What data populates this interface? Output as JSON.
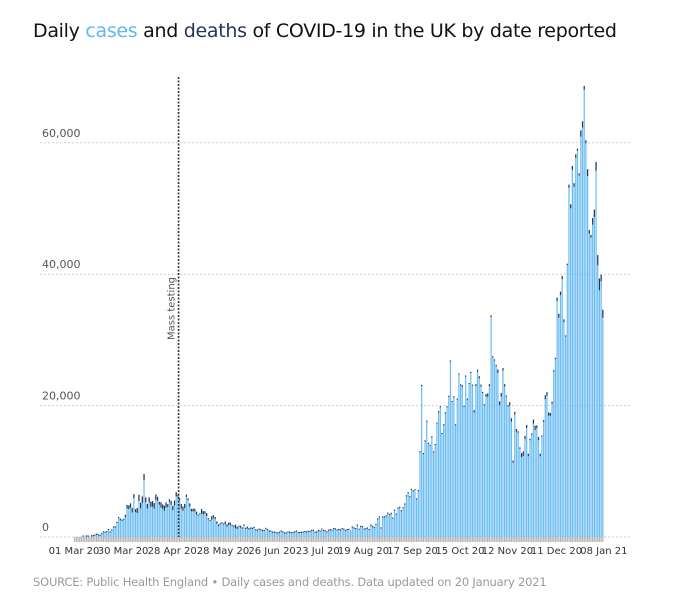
{
  "title": {
    "prefix": "Daily ",
    "cases_word": "cases",
    "middle": " and ",
    "deaths_word": "deaths",
    "suffix": " of COVID-19 in the UK by date reported"
  },
  "source": "SOURCE: Public Health England • Daily cases and deaths. Data updated on 20 January 2021",
  "colors": {
    "cases": "#6cbdf3",
    "deaths": "#1f3558",
    "grid": "#cfcfcf",
    "baseline_ticks": "#b5b5b5"
  },
  "chart_data": {
    "type": "bar",
    "stacked": true,
    "title": "Daily cases and deaths of COVID-19 in the UK by date reported",
    "xlabel": "",
    "ylabel": "",
    "start_date": "2020-03-01",
    "end_date": "2021-01-20",
    "ylim": [
      0,
      70000
    ],
    "yticks": [
      0,
      20000,
      40000,
      60000
    ],
    "ytick_labels": [
      "0",
      "20,000",
      "40,000",
      "60,000"
    ],
    "grid": true,
    "xtick_labels": [
      {
        "label": "01 Mar 20",
        "day": 0
      },
      {
        "label": "30 Mar 20",
        "day": 29
      },
      {
        "label": "28 Apr 20",
        "day": 58
      },
      {
        "label": "28 May 20",
        "day": 88
      },
      {
        "label": "26 Jun 20",
        "day": 117
      },
      {
        "label": "23 Jul 20",
        "day": 144
      },
      {
        "label": "19 Aug 20",
        "day": 171
      },
      {
        "label": "17 Sep 20",
        "day": 200
      },
      {
        "label": "15 Oct 20",
        "day": 228
      },
      {
        "label": "12 Nov 20",
        "day": 256
      },
      {
        "label": "11 Dec 20",
        "day": 285
      },
      {
        "label": "08 Jan 21",
        "day": 313
      }
    ],
    "annotations": [
      {
        "label": "Mass testing",
        "day": 60,
        "style": "dashed-vertical"
      }
    ],
    "series": [
      {
        "name": "cases",
        "values": [
          12,
          23,
          36,
          40,
          46,
          48,
          43,
          67,
          48,
          52,
          83,
          134,
          208,
          342,
          251,
          152,
          407,
          676,
          643,
          714,
          1035,
          665,
          967,
          1427,
          1452,
          2129,
          2885,
          2546,
          2433,
          2619,
          3009,
          4324,
          4244,
          4450,
          3735,
          5903,
          3802,
          3634,
          5491,
          4344,
          5195,
          8681,
          5288,
          4342,
          5252,
          4603,
          4617,
          4316,
          5599,
          5526,
          4913,
          4463,
          4309,
          3996,
          4451,
          4583,
          5386,
          4913,
          4076,
          4806,
          6201,
          6111,
          5614,
          4339,
          3985,
          4406,
          6111,
          5614,
          4649,
          3896,
          3877,
          3923,
          3403,
          3242,
          3446,
          3560,
          3450,
          3534,
          3173,
          2684,
          2412,
          2615,
          2959,
          2711,
          2013,
          1625,
          1887,
          2095,
          1887,
          1936,
          1570,
          1805,
          1871,
          1650,
          1557,
          1326,
          1205,
          1541,
          1425,
          1266,
          1741,
          1221,
          1295,
          1115,
          1269,
          1218,
          1346,
          1006,
          958,
          1118,
          1010,
          898,
          901,
          1221,
          1042,
          814,
          791,
          655,
          655,
          576,
          516,
          622,
          829,
          687,
          530,
          512,
          650,
          651,
          546,
          602,
          687,
          827,
          581,
          576,
          617,
          650,
          726,
          681,
          769,
          749,
          905,
          938,
          633,
          681,
          880,
          800,
          1108,
          898,
          864,
          686,
          938,
          1046,
          952,
          1187,
          1148,
          950,
          1052,
          1000,
          1182,
          1092,
          892,
          1040,
          1062,
          1033,
          1441,
          1278,
          1184,
          1715,
          1085,
          1522,
          1476,
          1108,
          1184,
          1276,
          1041,
          1715,
          1522,
          1350,
          1813,
          2660,
          2988,
          1295,
          2948,
          2952,
          3105,
          3539,
          3330,
          3497,
          2762,
          3991,
          3395,
          4322,
          4422,
          3899,
          4368,
          4926,
          6178,
          6634,
          6042,
          7143,
          6914,
          7108,
          5693,
          6968,
          12872,
          22961,
          12594,
          14542,
          17540,
          14162,
          13864,
          15166,
          12872,
          13972,
          17234,
          18980,
          19724,
          15650,
          16982,
          18804,
          19724,
          21331,
          26688,
          20530,
          21242,
          16982,
          20890,
          24701,
          23065,
          22885,
          19790,
          24405,
          20890,
          23254,
          24957,
          23012,
          18950,
          22950,
          25177,
          24141,
          22915,
          21915,
          20018,
          21350,
          21363,
          22950,
          33470,
          27301,
          26860,
          26000,
          24962,
          20051,
          21363,
          25329,
          22915,
          21350,
          19875,
          20018,
          17555,
          11299,
          18659,
          16022,
          15871,
          13430,
          12155,
          12330,
          14879,
          16578,
          12282,
          14718,
          15539,
          17272,
          16298,
          16578,
          14718,
          12282,
          15270,
          17555,
          20964,
          21502,
          18447,
          18447,
          20263,
          25161,
          27052,
          35928,
          33364,
          36804,
          39237,
          32725,
          30501,
          41385,
          53135,
          50023,
          55892,
          53285,
          57725,
          58784,
          54990,
          60916,
          62322,
          68053,
          59937,
          54940,
          46169,
          45533,
          47525,
          48682,
          55761,
          41346,
          37535,
          38905,
          33355
        ],
        "color": "#6cbdf3"
      },
      {
        "name": "deaths",
        "values": [
          0,
          0,
          0,
          0,
          0,
          1,
          0,
          1,
          1,
          0,
          3,
          2,
          1,
          10,
          14,
          20,
          16,
          33,
          40,
          33,
          56,
          48,
          54,
          87,
          41,
          115,
          181,
          260,
          209,
          180,
          381,
          563,
          569,
          684,
          708,
          621,
          439,
          786,
          938,
          881,
          980,
          917,
          737,
          717,
          778,
          761,
          861,
          847,
          888,
          596,
          449,
          828,
          638,
          768,
          813,
          413,
          360,
          586,
          674,
          739,
          621,
          315,
          288,
          693,
          649,
          626,
          346,
          268,
          469,
          383,
          428,
          384,
          468,
          170,
          160,
          693,
          494,
          384,
          468,
          170,
          118,
          545,
          363,
          338,
          351,
          282,
          215,
          121,
          134,
          414,
          357,
          377,
          324,
          215,
          113,
          556,
          359,
          176,
          286,
          204,
          77,
          55,
          286,
          245,
          151,
          202,
          173,
          43,
          36,
          135,
          184,
          122,
          89,
          136,
          15,
          36,
          154,
          149,
          140,
          137,
          22,
          6,
          56,
          154,
          127,
          95,
          65,
          24,
          20,
          176,
          89,
          63,
          36,
          22,
          14,
          11,
          85,
          44,
          66,
          52,
          31,
          11,
          8,
          105,
          89,
          18,
          53,
          5,
          3,
          8,
          3,
          57,
          65,
          98,
          74,
          18,
          2,
          5,
          11,
          8,
          26,
          16,
          12,
          0,
          5,
          6,
          11,
          10,
          9,
          10,
          8,
          3,
          5,
          16,
          10,
          2,
          10,
          6,
          2,
          3,
          12,
          6,
          8,
          14,
          12,
          4,
          3,
          20,
          20,
          14,
          18,
          14,
          4,
          3,
          11,
          19,
          23,
          36,
          18,
          17,
          10,
          37,
          37,
          17,
          27,
          34,
          18,
          17,
          71,
          59,
          66,
          76,
          59,
          7,
          19,
          66,
          77,
          81,
          87,
          65,
          13,
          50,
          143,
          137,
          138,
          126,
          81,
          19,
          80,
          241,
          191,
          150,
          189,
          151,
          67,
          102,
          367,
          310,
          280,
          326,
          274,
          136,
          162,
          397,
          492,
          310,
          263,
          214,
          182,
          194,
          532,
          595,
          563,
          376,
          341,
          168,
          210,
          501,
          511,
          341,
          398,
          413,
          205,
          215,
          598,
          696,
          498,
          479,
          396,
          215,
          231,
          603,
          648,
          414,
          504,
          397,
          144,
          232,
          616,
          533,
          516,
          424,
          326,
          215,
          232,
          506,
          612,
          532,
          490,
          410,
          144,
          215,
          506,
          610,
          574,
          570,
          512,
          316,
          357,
          981,
          964,
          613,
          454,
          1041,
          563,
          454,
          1035,
          1162,
          1325,
          1564,
          1820,
          1035,
          1243,
          1610,
          1820,
          1248,
          1295,
          671,
          1248,
          1820,
          1610,
          1290,
          1401,
          671,
          599,
          1610,
          1820
        ],
        "color": "#1f3558"
      }
    ]
  }
}
